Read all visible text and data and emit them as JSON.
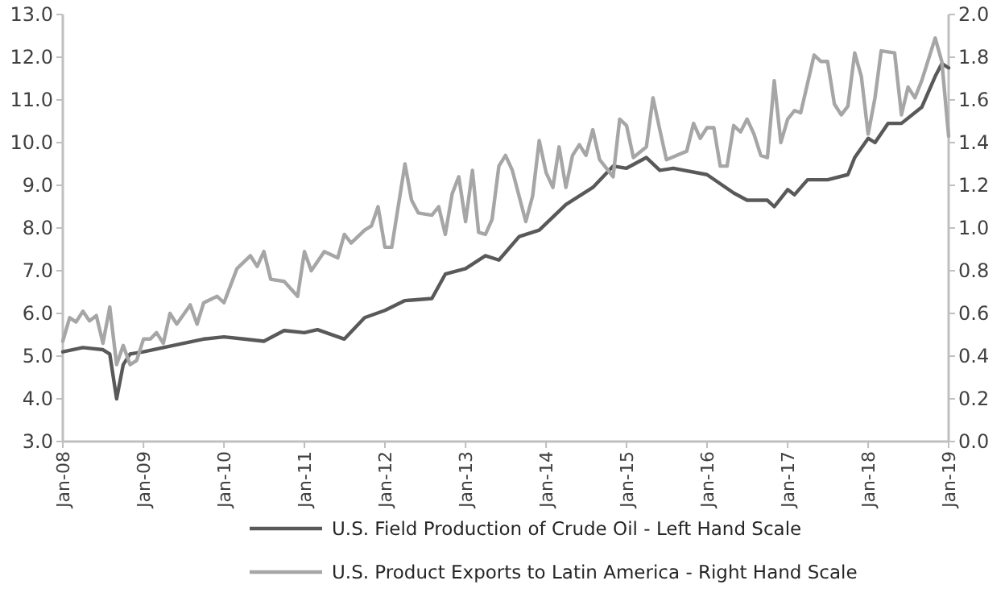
{
  "chart_data": {
    "type": "line",
    "xlim": [
      "2008-01",
      "2019-01"
    ],
    "xticks": [
      {
        "value": "2008-01",
        "label": "Jan-08"
      },
      {
        "value": "2009-01",
        "label": "Jan-09"
      },
      {
        "value": "2010-01",
        "label": "Jan-10"
      },
      {
        "value": "2011-01",
        "label": "Jan-11"
      },
      {
        "value": "2012-01",
        "label": "Jan-12"
      },
      {
        "value": "2013-01",
        "label": "Jan-13"
      },
      {
        "value": "2014-01",
        "label": "Jan-14"
      },
      {
        "value": "2015-01",
        "label": "Jan-15"
      },
      {
        "value": "2016-01",
        "label": "Jan-16"
      },
      {
        "value": "2017-01",
        "label": "Jan-17"
      },
      {
        "value": "2018-01",
        "label": "Jan-18"
      },
      {
        "value": "2019-01",
        "label": "Jan-19"
      }
    ],
    "ylim": [
      3,
      13
    ],
    "yticks": [
      {
        "value": 3,
        "label": "3.0"
      },
      {
        "value": 4,
        "label": "4.0"
      },
      {
        "value": 5,
        "label": "5.0"
      },
      {
        "value": 6,
        "label": "6.0"
      },
      {
        "value": 7,
        "label": "7.0"
      },
      {
        "value": 8,
        "label": "8.0"
      },
      {
        "value": 9,
        "label": "9.0"
      },
      {
        "value": 10,
        "label": "10.0"
      },
      {
        "value": 11,
        "label": "11.0"
      },
      {
        "value": 12,
        "label": "12.0"
      },
      {
        "value": 13,
        "label": "13.0"
      }
    ],
    "y2lim": [
      0,
      2
    ],
    "y2ticks": [
      {
        "value": 0,
        "label": "0.0"
      },
      {
        "value": 0.2,
        "label": "0.2"
      },
      {
        "value": 0.4,
        "label": "0.4"
      },
      {
        "value": 0.6,
        "label": "0.6"
      },
      {
        "value": 0.8,
        "label": "0.8"
      },
      {
        "value": 1,
        "label": "1.0"
      },
      {
        "value": 1.2,
        "label": "1.2"
      },
      {
        "value": 1.4,
        "label": "1.4"
      },
      {
        "value": 1.6,
        "label": "1.6"
      },
      {
        "value": 1.8,
        "label": "1.8"
      },
      {
        "value": 2,
        "label": "2.0"
      }
    ],
    "grid": false,
    "legend": "bottom",
    "marker": "none",
    "line_style": "solid",
    "series": [
      {
        "name": "U.S. Field Production of Crude Oil - Left Hand Scale",
        "color": "#595959",
        "x": [
          "2008-01",
          "2008-04",
          "2008-07",
          "2008-08",
          "2008-09",
          "2008-10",
          "2008-11",
          "2009-01",
          "2009-04",
          "2009-07",
          "2009-10",
          "2010-01",
          "2010-04",
          "2010-07",
          "2010-10",
          "2011-01",
          "2011-03",
          "2011-07",
          "2011-10",
          "2012-01",
          "2012-04",
          "2012-08",
          "2012-10",
          "2013-01",
          "2013-04",
          "2013-06",
          "2013-09",
          "2013-12",
          "2014-04",
          "2014-08",
          "2014-11",
          "2015-01",
          "2015-04",
          "2015-06",
          "2015-08",
          "2016-01",
          "2016-05",
          "2016-07",
          "2016-10",
          "2016-11",
          "2017-01",
          "2017-02",
          "2017-04",
          "2017-07",
          "2017-10",
          "2017-11",
          "2018-01",
          "2018-02",
          "2018-04",
          "2018-06",
          "2018-09",
          "2018-11",
          "2018-12",
          "2019-01"
        ],
        "values": [
          5.1,
          5.2,
          5.15,
          5.05,
          4.0,
          4.8,
          5.05,
          5.1,
          5.2,
          5.3,
          5.4,
          5.45,
          5.4,
          5.35,
          5.6,
          5.55,
          5.62,
          5.4,
          5.9,
          6.07,
          6.3,
          6.35,
          6.92,
          7.05,
          7.35,
          7.25,
          7.8,
          7.95,
          8.55,
          8.95,
          9.45,
          9.4,
          9.65,
          9.35,
          9.4,
          9.25,
          8.82,
          8.65,
          8.65,
          8.5,
          8.9,
          8.78,
          9.13,
          9.13,
          9.25,
          9.65,
          10.1,
          10.0,
          10.45,
          10.45,
          10.83,
          11.55,
          11.85,
          11.75
        ]
      },
      {
        "name": "U.S. Product Exports to Latin America - Right Hand Scale",
        "color": "#a6a6a6",
        "axis": "y2",
        "x": [
          "2008-01",
          "2008-02",
          "2008-03",
          "2008-04",
          "2008-05",
          "2008-06",
          "2008-07",
          "2008-08",
          "2008-09",
          "2008-10",
          "2008-11",
          "2008-12",
          "2009-01",
          "2009-02",
          "2009-03",
          "2009-04",
          "2009-05",
          "2009-06",
          "2009-08",
          "2009-09",
          "2009-10",
          "2009-12",
          "2010-01",
          "2010-03",
          "2010-05",
          "2010-06",
          "2010-07",
          "2010-08",
          "2010-10",
          "2010-12",
          "2011-01",
          "2011-02",
          "2011-04",
          "2011-06",
          "2011-07",
          "2011-08",
          "2011-10",
          "2011-11",
          "2011-12",
          "2012-01",
          "2012-02",
          "2012-04",
          "2012-05",
          "2012-06",
          "2012-08",
          "2012-09",
          "2012-10",
          "2012-11",
          "2012-12",
          "2013-01",
          "2013-02",
          "2013-03",
          "2013-04",
          "2013-05",
          "2013-06",
          "2013-07",
          "2013-08",
          "2013-10",
          "2013-11",
          "2013-12",
          "2014-01",
          "2014-02",
          "2014-03",
          "2014-04",
          "2014-05",
          "2014-06",
          "2014-07",
          "2014-08",
          "2014-09",
          "2014-11",
          "2014-12",
          "2015-01",
          "2015-02",
          "2015-04",
          "2015-05",
          "2015-06",
          "2015-07",
          "2015-10",
          "2015-11",
          "2015-12",
          "2016-01",
          "2016-02",
          "2016-03",
          "2016-04",
          "2016-05",
          "2016-06",
          "2016-07",
          "2016-08",
          "2016-09",
          "2016-10",
          "2016-11",
          "2016-12",
          "2017-01",
          "2017-02",
          "2017-03",
          "2017-05",
          "2017-06",
          "2017-07",
          "2017-08",
          "2017-09",
          "2017-10",
          "2017-11",
          "2017-12",
          "2018-01",
          "2018-02",
          "2018-03",
          "2018-05",
          "2018-06",
          "2018-07",
          "2018-08",
          "2018-09",
          "2018-11",
          "2018-12",
          "2019-01"
        ],
        "values": [
          0.47,
          0.58,
          0.56,
          0.61,
          0.565,
          0.59,
          0.46,
          0.63,
          0.36,
          0.45,
          0.36,
          0.38,
          0.48,
          0.48,
          0.51,
          0.46,
          0.6,
          0.55,
          0.64,
          0.55,
          0.65,
          0.68,
          0.65,
          0.81,
          0.87,
          0.82,
          0.89,
          0.76,
          0.75,
          0.68,
          0.89,
          0.8,
          0.89,
          0.86,
          0.97,
          0.93,
          0.99,
          1.01,
          1.1,
          0.91,
          0.91,
          1.3,
          1.13,
          1.07,
          1.06,
          1.1,
          0.97,
          1.16,
          1.24,
          1.03,
          1.27,
          0.98,
          0.97,
          1.04,
          1.29,
          1.34,
          1.27,
          1.03,
          1.15,
          1.41,
          1.26,
          1.19,
          1.38,
          1.19,
          1.34,
          1.39,
          1.34,
          1.46,
          1.32,
          1.24,
          1.51,
          1.48,
          1.33,
          1.38,
          1.61,
          1.46,
          1.32,
          1.36,
          1.49,
          1.42,
          1.47,
          1.47,
          1.29,
          1.29,
          1.48,
          1.45,
          1.51,
          1.44,
          1.34,
          1.33,
          1.69,
          1.4,
          1.51,
          1.55,
          1.54,
          1.81,
          1.78,
          1.78,
          1.58,
          1.53,
          1.57,
          1.82,
          1.71,
          1.44,
          1.61,
          1.83,
          1.82,
          1.53,
          1.66,
          1.61,
          1.69,
          1.89,
          1.78,
          1.43
        ]
      }
    ]
  }
}
